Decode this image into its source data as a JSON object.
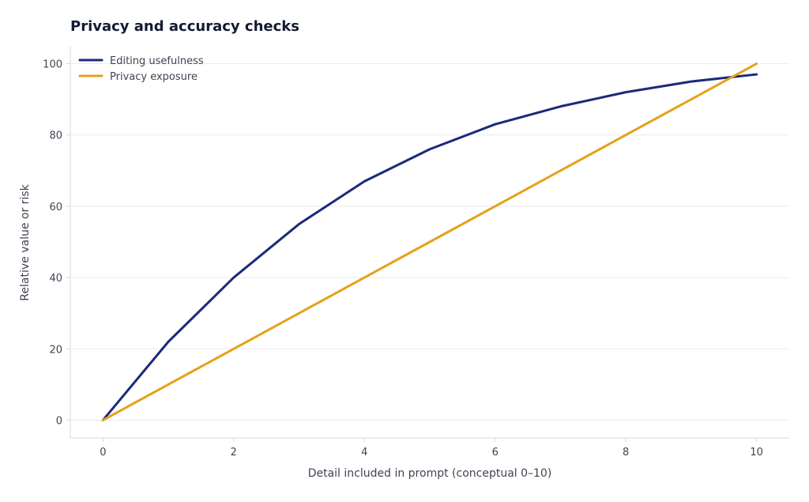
{
  "chart_data": {
    "type": "line",
    "title": "Privacy and accuracy checks",
    "xlabel": "Detail included in prompt (conceptual 0–10)",
    "ylabel": "Relative value or risk",
    "xlim": [
      -0.5,
      10.5
    ],
    "ylim": [
      -5,
      105
    ],
    "xticks": [
      0,
      2,
      4,
      6,
      8,
      10
    ],
    "yticks": [
      0,
      20,
      40,
      60,
      80,
      100
    ],
    "grid": "horizontal",
    "legend_position": "top-left",
    "x": [
      0,
      1,
      2,
      3,
      4,
      5,
      6,
      7,
      8,
      9,
      10
    ],
    "series": [
      {
        "name": "Editing usefulness",
        "color": "#1b2a7a",
        "values": [
          0,
          22,
          40,
          55,
          67,
          76,
          83,
          88,
          92,
          95,
          97
        ]
      },
      {
        "name": "Privacy exposure",
        "color": "#e4a11b",
        "values": [
          0,
          10,
          20,
          30,
          40,
          50,
          60,
          70,
          80,
          90,
          100
        ]
      }
    ]
  }
}
